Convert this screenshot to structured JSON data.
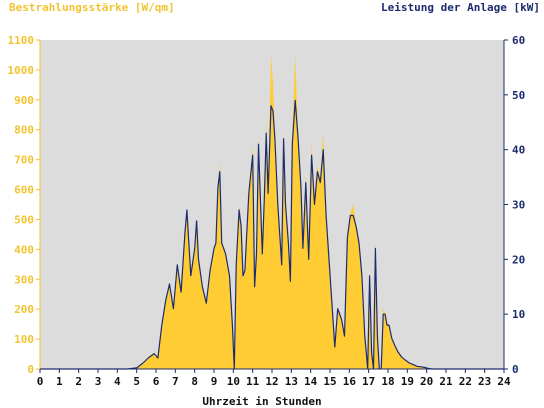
{
  "colors": {
    "irradiance": "#FFCC33",
    "power": "#1C2C6E",
    "plot_background": "#DCDCDC",
    "axis_left": "#F2C431",
    "axis_right": "#1C2C6E",
    "axis_bottom": "#1C2C6E"
  },
  "chart_data": {
    "type": "area",
    "title_left": "Bestrahlungsstärke [W/qm]",
    "title_right": "Leistung der Anlage [kW]",
    "xlabel": "Uhrzeit in Stunden",
    "x_ticks": [
      "0",
      "1",
      "2",
      "3",
      "4",
      "5",
      "6",
      "7",
      "8",
      "9",
      "10",
      "11",
      "12",
      "13",
      "14",
      "15",
      "16",
      "17",
      "18",
      "19",
      "20",
      "21",
      "22",
      "23",
      "24"
    ],
    "y_left_ticks": [
      "0",
      "100",
      "200",
      "300",
      "400",
      "500",
      "600",
      "700",
      "800",
      "900",
      "1000",
      "1100"
    ],
    "y_right_ticks": [
      "0",
      "10",
      "20",
      "30",
      "40",
      "50",
      "60"
    ],
    "xlim": [
      0,
      24
    ],
    "ylim_left": [
      0,
      1100
    ],
    "ylim_right": [
      0,
      60
    ],
    "grid": false,
    "series": [
      {
        "name": "Bestrahlungsstärke",
        "axis": "left",
        "style": "filled-area",
        "x": [
          4.5,
          5.0,
          5.3,
          5.6,
          5.9,
          6.1,
          6.3,
          6.5,
          6.7,
          6.9,
          7.1,
          7.3,
          7.5,
          7.6,
          7.8,
          8.0,
          8.1,
          8.2,
          8.4,
          8.6,
          8.8,
          9.0,
          9.1,
          9.2,
          9.3,
          9.4,
          9.6,
          9.8,
          9.95,
          10.05,
          10.15,
          10.3,
          10.4,
          10.5,
          10.6,
          10.8,
          11.0,
          11.1,
          11.2,
          11.3,
          11.5,
          11.6,
          11.7,
          11.8,
          11.95,
          12.05,
          12.15,
          12.3,
          12.5,
          12.6,
          12.7,
          12.85,
          12.95,
          13.05,
          13.2,
          13.35,
          13.5,
          13.6,
          13.75,
          13.9,
          14.05,
          14.2,
          14.35,
          14.5,
          14.65,
          14.8,
          14.95,
          15.1,
          15.25,
          15.4,
          15.6,
          15.75,
          15.9,
          16.05,
          16.2,
          16.35,
          16.5,
          16.65,
          16.8,
          16.95,
          17.05,
          17.15,
          17.25,
          17.35,
          17.45,
          17.55,
          17.65,
          17.75,
          17.85,
          17.95,
          18.05,
          18.2,
          18.35,
          18.5,
          18.7,
          18.9,
          19.1,
          19.3,
          19.5,
          19.7,
          19.9,
          20.1,
          20.3
        ],
        "values": [
          0,
          5,
          20,
          40,
          55,
          40,
          150,
          230,
          290,
          210,
          350,
          260,
          460,
          530,
          320,
          410,
          490,
          380,
          280,
          220,
          340,
          400,
          420,
          620,
          690,
          420,
          380,
          320,
          150,
          0,
          350,
          550,
          480,
          320,
          330,
          600,
          750,
          280,
          400,
          780,
          400,
          580,
          830,
          600,
          1050,
          960,
          780,
          560,
          350,
          800,
          560,
          430,
          300,
          780,
          1050,
          780,
          620,
          400,
          650,
          380,
          760,
          560,
          680,
          640,
          790,
          520,
          380,
          230,
          90,
          210,
          170,
          110,
          450,
          520,
          550,
          480,
          420,
          310,
          120,
          0,
          320,
          60,
          0,
          420,
          120,
          0,
          0,
          200,
          190,
          150,
          150,
          100,
          80,
          60,
          40,
          30,
          20,
          15,
          10,
          8,
          5,
          2,
          0
        ]
      },
      {
        "name": "Leistung der Anlage",
        "axis": "right",
        "style": "line",
        "x": [
          4.5,
          5.0,
          5.3,
          5.6,
          5.9,
          6.1,
          6.3,
          6.5,
          6.7,
          6.9,
          7.1,
          7.3,
          7.5,
          7.6,
          7.8,
          8.0,
          8.1,
          8.2,
          8.4,
          8.6,
          8.8,
          9.0,
          9.1,
          9.2,
          9.3,
          9.4,
          9.6,
          9.8,
          9.95,
          10.05,
          10.15,
          10.3,
          10.4,
          10.5,
          10.6,
          10.8,
          11.0,
          11.1,
          11.2,
          11.3,
          11.5,
          11.6,
          11.7,
          11.8,
          11.95,
          12.05,
          12.15,
          12.3,
          12.5,
          12.6,
          12.7,
          12.85,
          12.95,
          13.05,
          13.2,
          13.35,
          13.5,
          13.6,
          13.75,
          13.9,
          14.05,
          14.2,
          14.35,
          14.5,
          14.65,
          14.8,
          14.95,
          15.1,
          15.25,
          15.4,
          15.6,
          15.75,
          15.9,
          16.05,
          16.2,
          16.35,
          16.5,
          16.65,
          16.8,
          16.95,
          17.05,
          17.15,
          17.25,
          17.35,
          17.45,
          17.55,
          17.65,
          17.75,
          17.85,
          17.95,
          18.05,
          18.2,
          18.35,
          18.5,
          18.7,
          18.9,
          19.1,
          19.3,
          19.5,
          19.7,
          19.9,
          20.1,
          20.3
        ],
        "values": [
          0,
          0.2,
          1,
          2,
          2.8,
          2,
          8,
          12.5,
          15.5,
          11,
          19,
          14,
          25,
          29,
          17,
          22,
          27,
          20,
          15,
          12,
          18,
          22,
          23,
          33,
          36,
          23,
          21,
          17,
          8,
          0,
          19,
          29,
          26,
          17,
          18,
          32,
          39,
          15,
          21,
          41,
          21,
          31,
          43,
          32,
          48,
          47,
          42,
          30,
          19,
          42,
          30,
          23,
          16,
          41,
          49,
          42,
          33,
          22,
          34,
          20,
          39,
          30,
          36,
          34,
          40,
          28,
          20,
          12,
          4,
          11,
          9,
          6,
          24,
          28,
          28,
          26,
          23,
          17,
          6,
          0,
          17,
          3,
          0,
          22,
          6,
          0,
          0,
          10,
          10,
          8,
          8,
          5.5,
          4.3,
          3.2,
          2.2,
          1.6,
          1.1,
          0.8,
          0.5,
          0.4,
          0.3,
          0.1,
          0
        ]
      }
    ]
  }
}
